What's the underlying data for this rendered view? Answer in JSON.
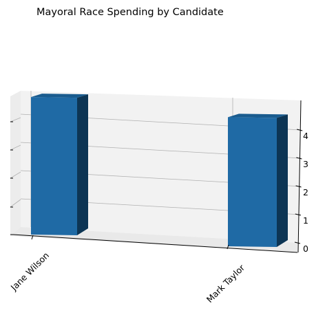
{
  "chart_data": {
    "type": "bar",
    "title": "Mayoral Race Spending by Candidate",
    "categories": [
      "Jane Wilson",
      "Mark Taylor"
    ],
    "values": [
      4.9,
      4.6
    ],
    "y_ticks": [
      "0",
      "1",
      "2",
      "3",
      "4"
    ],
    "ylim": [
      0,
      5
    ],
    "projection": "3d",
    "grid": true,
    "colors": {
      "bar_front": "#1f6aa5",
      "bar_side": "#0d3554",
      "bar_top": "#1a5c8f",
      "pane": "#f2f2f2",
      "grid": "#b0b0b0"
    }
  }
}
